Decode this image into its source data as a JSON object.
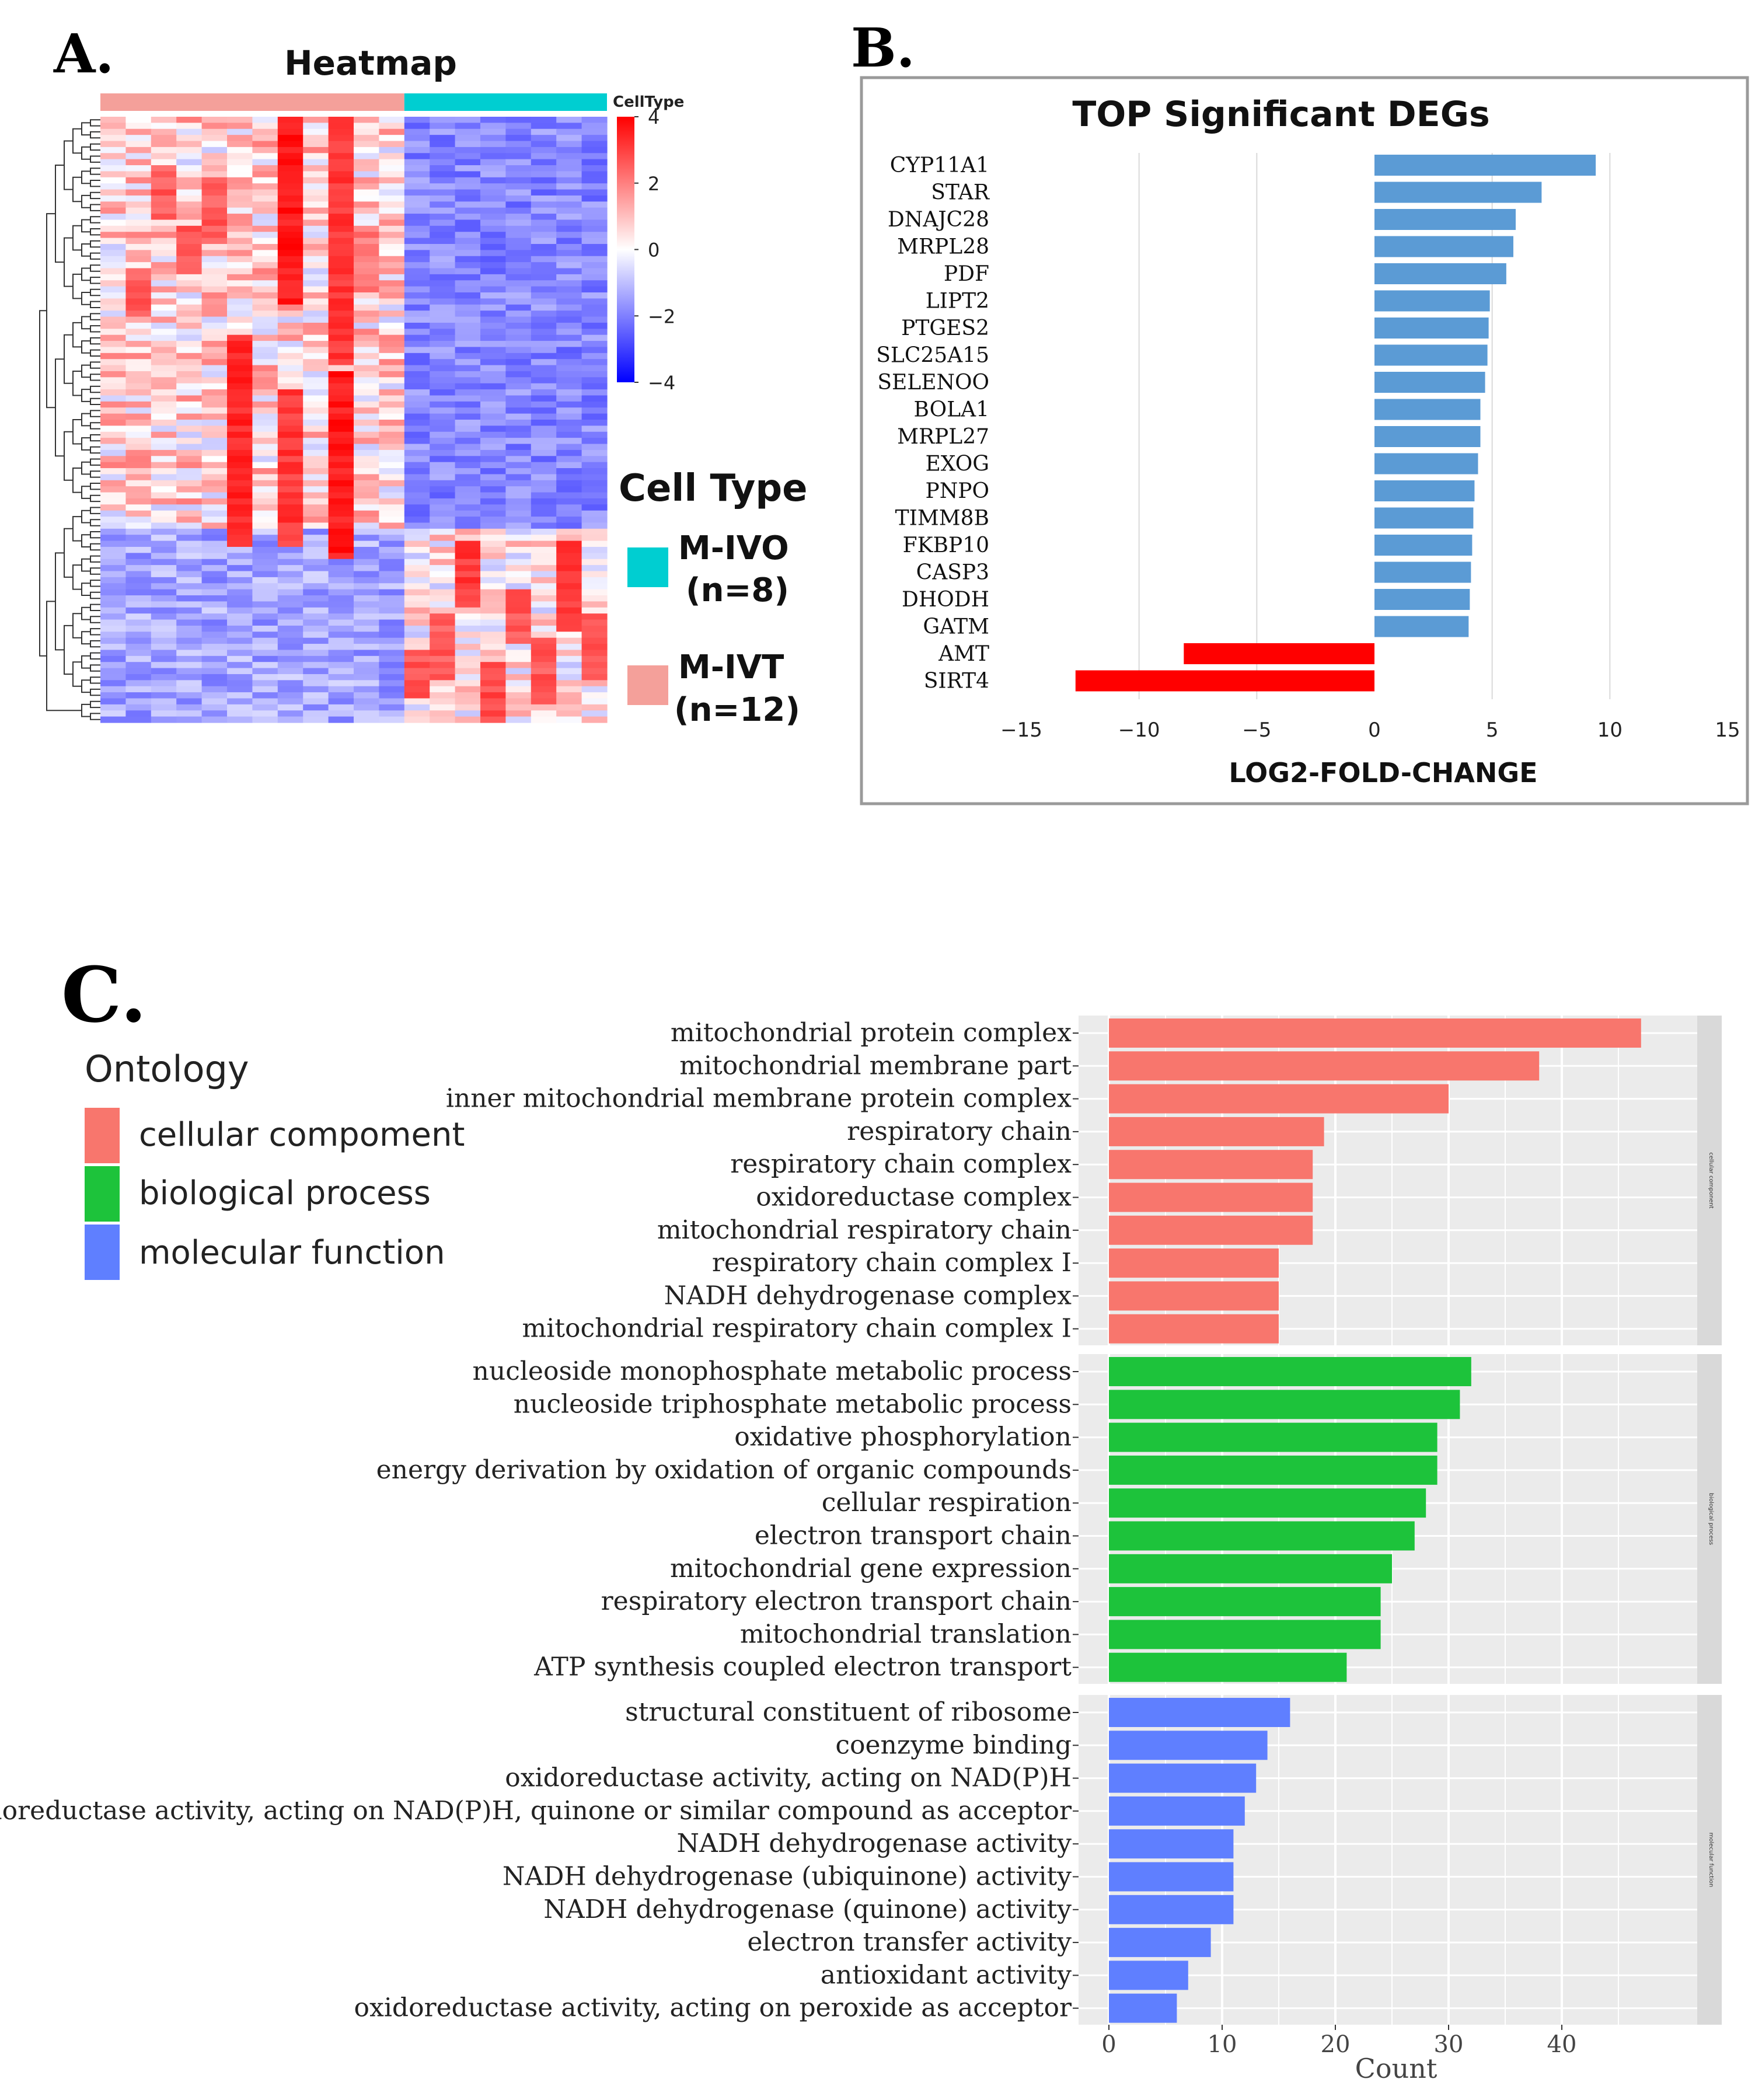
{
  "panels": {
    "a": {
      "letter": "A.",
      "title": "Heatmap",
      "annotation_label": "CellType",
      "colorbar_ticks": [
        "4",
        "2",
        "0",
        "−2",
        "−4"
      ],
      "legend_title": "Cell Type",
      "legend_items": [
        {
          "name": "M-IVO",
          "n": "(n=8)",
          "color": "#00CED1"
        },
        {
          "name": "M-IVT",
          "n": "(n=12)",
          "color": "#F4A09A"
        }
      ]
    },
    "b": {
      "letter": "B."
    },
    "c": {
      "letter": "C."
    }
  },
  "colors": {
    "pos_bar": "#5B9BD5",
    "neg_bar": "#FF0000",
    "cc": "#F8766D",
    "bp": "#1DC33B",
    "mf": "#5F7FFF",
    "ivt": "#F4A09A",
    "ivo": "#00CED1"
  },
  "chart_data": [
    {
      "type": "heatmap",
      "title": "Heatmap",
      "annotation": "CellType",
      "groups": [
        {
          "name": "M-IVT",
          "n": 12,
          "color": "#F4A09A"
        },
        {
          "name": "M-IVO",
          "n": 8,
          "color": "#00CED1"
        }
      ],
      "columns": 20,
      "rows": 100,
      "color_scale": {
        "min": -4,
        "max": 4,
        "ticks": [
          4,
          2,
          0,
          -2,
          -4
        ],
        "low": "#0000FF",
        "mid": "#FFFFFF",
        "high": "#FF0000"
      }
    },
    {
      "type": "bar",
      "orientation": "horizontal",
      "title": "TOP Significant DEGs",
      "xlabel": "LOG2-FOLD-CHANGE",
      "ylabel": "",
      "xlim": [
        -15,
        15
      ],
      "xticks": [
        "−15",
        "−10",
        "−5",
        "0",
        "5",
        "10",
        "15"
      ],
      "xtick_values": [
        -15,
        -10,
        -5,
        0,
        5,
        10,
        15
      ],
      "categories": [
        "CYP11A1",
        "STAR",
        "DNAJC28",
        "MRPL28",
        "PDF",
        "LIPT2",
        "PTGES2",
        "SLC25A15",
        "SELENOO",
        "BOLA1",
        "MRPL27",
        "EXOG",
        "PNPO",
        "TIMM8B",
        "FKBP10",
        "CASP3",
        "DHODH",
        "GATM",
        "AMT",
        "SIRT4"
      ],
      "values": [
        9.4,
        7.1,
        6.0,
        5.9,
        5.6,
        4.9,
        4.85,
        4.8,
        4.7,
        4.5,
        4.5,
        4.4,
        4.25,
        4.2,
        4.15,
        4.1,
        4.05,
        4.0,
        -8.1,
        -12.7
      ]
    },
    {
      "type": "bar",
      "orientation": "horizontal",
      "title": "",
      "xlabel": "Count",
      "ylabel": "",
      "xlim": [
        0,
        50
      ],
      "xticks": [
        "0",
        "10",
        "20",
        "30",
        "40"
      ],
      "xtick_values": [
        0,
        10,
        20,
        30,
        40
      ],
      "legend": {
        "title": "Ontology",
        "position": "top-left"
      },
      "series": [
        {
          "name": "cellular compoment",
          "facet_label": "cellular component",
          "color": "#F8766D",
          "categories": [
            "mitochondrial protein complex",
            "mitochondrial membrane part",
            "inner mitochondrial membrane protein complex",
            "respiratory chain",
            "respiratory chain complex",
            "oxidoreductase complex",
            "mitochondrial respiratory chain",
            "respiratory chain complex I",
            "NADH dehydrogenase complex",
            "mitochondrial respiratory chain complex I"
          ],
          "values": [
            47,
            38,
            30,
            19,
            18,
            18,
            18,
            15,
            15,
            15
          ]
        },
        {
          "name": "biological process",
          "facet_label": "biological process",
          "color": "#1DC33B",
          "categories": [
            "nucleoside monophosphate metabolic process",
            "nucleoside triphosphate metabolic process",
            "oxidative phosphorylation",
            "energy derivation by oxidation of organic compounds",
            "cellular respiration",
            "electron transport chain",
            "mitochondrial gene expression",
            "respiratory electron transport chain",
            "mitochondrial translation",
            "ATP synthesis coupled electron transport"
          ],
          "values": [
            32,
            31,
            29,
            29,
            28,
            27,
            25,
            24,
            24,
            21
          ]
        },
        {
          "name": "molecular function",
          "facet_label": "molecular function",
          "color": "#5F7FFF",
          "categories": [
            "structural constituent of ribosome",
            "coenzyme binding",
            "oxidoreductase activity, acting on NAD(P)H",
            "oxidoreductase activity, acting on NAD(P)H, quinone or similar compound as acceptor",
            "NADH dehydrogenase activity",
            "NADH dehydrogenase (ubiquinone) activity",
            "NADH dehydrogenase (quinone) activity",
            "electron transfer activity",
            "antioxidant activity",
            "oxidoreductase activity, acting on peroxide as acceptor"
          ],
          "values": [
            16,
            14,
            13,
            12,
            11,
            11,
            11,
            9,
            7,
            6
          ]
        }
      ]
    }
  ]
}
